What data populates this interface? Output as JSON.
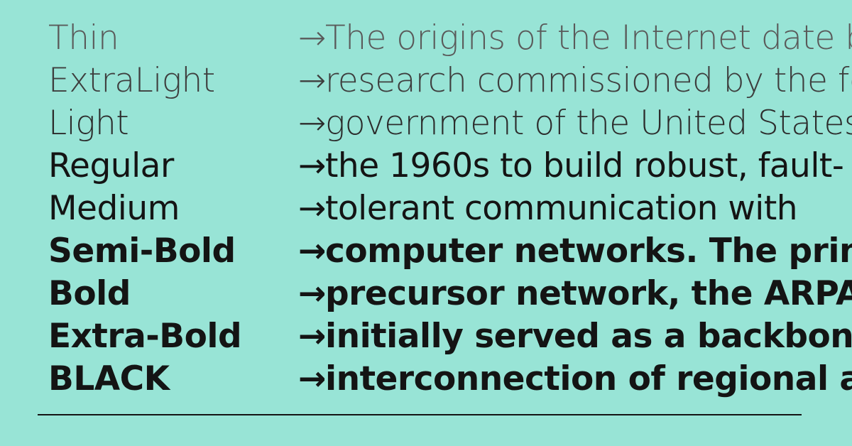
{
  "arrow_glyph": "→",
  "rows": [
    {
      "weight": "Thin",
      "text": "The origins of the Internet date back to"
    },
    {
      "weight": "ExtraLight",
      "text": "research commissioned by the federal"
    },
    {
      "weight": "Light",
      "text": "government of the United States in"
    },
    {
      "weight": "Regular",
      "text": "the 1960s to build robust, fault-"
    },
    {
      "weight": "Medium",
      "text": "tolerant communication with"
    },
    {
      "weight": "Semi-Bold",
      "text": "computer networks. The primary"
    },
    {
      "weight": "Bold",
      "text": "precursor network, the ARPANET,"
    },
    {
      "weight": "Extra-Bold",
      "text": "initially served as a backbone for"
    },
    {
      "weight": "BLACK",
      "text": "interconnection of regional and"
    }
  ],
  "colors": {
    "background": "#98e4d6",
    "text": "#141414",
    "rule": "#141414"
  }
}
